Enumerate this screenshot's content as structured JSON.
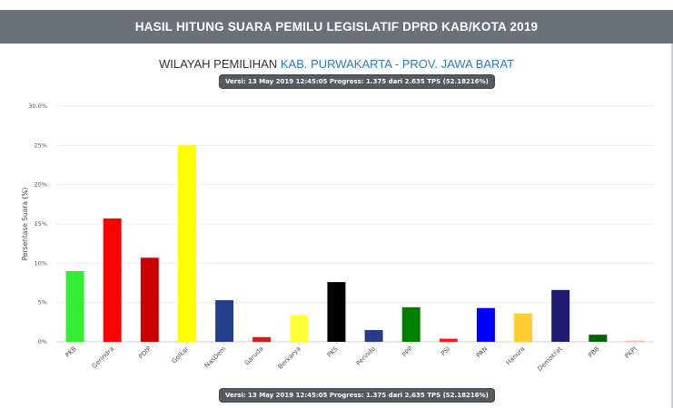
{
  "header": {
    "title": "HASIL HITUNG SUARA PEMILU LEGISLATIF DPRD KAB/KOTA 2019"
  },
  "region": {
    "label": "WILAYAH PEMILIHAN",
    "value": "KAB. PURWAKARTA - PROV. JAWA BARAT"
  },
  "version": {
    "text": "Versi: 13 May 2019 12:45:05 Progress: 1.375 dari 2.635 TPS (52.18216%)"
  },
  "chart_data": {
    "type": "bar",
    "title": "",
    "xlabel": "",
    "ylabel": "Persentase Suara (%)",
    "ylim": [
      0,
      30
    ],
    "yticks": [
      0,
      5,
      10,
      15,
      20,
      25,
      30
    ],
    "ytick_labels": [
      "0%",
      "5%",
      "10%",
      "15%",
      "20%",
      "25%",
      "30.0%"
    ],
    "grid": true,
    "categories": [
      "PKB",
      "Gerindra",
      "PDIP",
      "Golkar",
      "NasDem",
      "Garuda",
      "Berkarya",
      "PKS",
      "Perindo",
      "PPP",
      "PSI",
      "PAN",
      "Hanura",
      "Demokrat",
      "PBB",
      "PKPI"
    ],
    "values": [
      9.0,
      15.7,
      10.7,
      25.0,
      5.3,
      0.6,
      3.4,
      7.6,
      1.5,
      4.4,
      0.4,
      4.3,
      3.6,
      6.6,
      0.9,
      0.15
    ],
    "colors": [
      "#33ee33",
      "#ff0000",
      "#cc0000",
      "#ffff00",
      "#23408e",
      "#cc1f1f",
      "#ffff33",
      "#000000",
      "#293a8a",
      "#008000",
      "#ff1a1a",
      "#0000ff",
      "#ffcc33",
      "#1e1b6e",
      "#006400",
      "#f7b7a3"
    ]
  }
}
